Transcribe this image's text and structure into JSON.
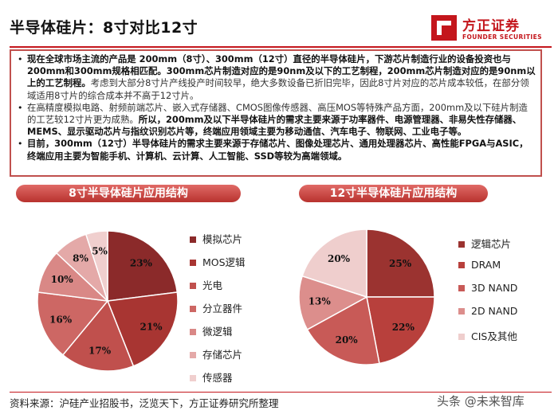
{
  "header": {
    "title": "半导体硅片：8寸对比12寸",
    "logo_cn": "方正证券",
    "logo_en": "FOUNDER SECURITIES"
  },
  "bullets": [
    {
      "parts": [
        {
          "text": "现在全球市场主流的产品是 200mm（8寸）、300mm（12寸）直径的半导体硅片，下游芯片制造行业的设备投资也与200mm和300mm规格相匹配。300mm芯片制造对应的是90nm及以下的工艺制程，200mm芯片制造对应的是90nm以上的工艺制程。",
          "style": "bold"
        },
        {
          "text": "考虑到大部分8寸片产线投产时间较早，绝大多数设备已折旧完毕，因此8寸片对应的芯片成本较低，在部分领域适用8寸片的综合成本并不高于12寸片。",
          "style": "normal"
        }
      ]
    },
    {
      "parts": [
        {
          "text": "在高精度模拟电路、射频前端芯片、嵌入式存储器、CMOS图像传感器、高压MOS等特殊产品方面，200mm及以下硅片制造的工艺较12寸片更为成熟。",
          "style": "normal"
        },
        {
          "text": "所以，200mm及以下半导体硅片的需求主要来源于功率器件、电源管理器、非易失性存储器、MEMS、显示驱动芯片与指纹识别芯片等，终端应用领域主要为移动通信、汽车电子、物联网、工业电子等。",
          "style": "bold"
        }
      ]
    },
    {
      "parts": [
        {
          "text": "目前，300mm（12寸）半导体硅片的需求主要来源于存储芯片、图像处理芯片、通用处理器芯片、高性能FPGA与ASIC，终端应用主要为智能手机、计算机、云计算、人工智能、SSD等较为高端领域。",
          "style": "bold"
        }
      ]
    }
  ],
  "chart_data": [
    {
      "type": "pie",
      "title": "8寸半导体硅片应用结构",
      "categories": [
        "模拟芯片",
        "MOS逻辑",
        "光电",
        "分立器件",
        "微逻辑",
        "存储芯片",
        "传感器"
      ],
      "values": [
        23,
        21,
        17,
        16,
        10,
        8,
        5
      ],
      "labels": [
        "23%",
        "21%",
        "17%",
        "16%",
        "10%",
        "8%",
        "5%"
      ],
      "colors": [
        "#8b2a2a",
        "#a83532",
        "#c0504d",
        "#cd6764",
        "#d98886",
        "#e4a9a8",
        "#f0cfce"
      ],
      "legend_position": "right"
    },
    {
      "type": "pie",
      "title": "12寸半导体硅片应用结构",
      "categories": [
        "逻辑芯片",
        "DRAM",
        "3D NAND",
        "2D NAND",
        "CIS及其他"
      ],
      "values": [
        25,
        22,
        20,
        13,
        20
      ],
      "labels": [
        "25%",
        "22%",
        "20%",
        "13%",
        "20%"
      ],
      "colors": [
        "#9b3330",
        "#b8403c",
        "#c85a57",
        "#dc8e8c",
        "#efcecd"
      ],
      "legend_position": "right"
    }
  ],
  "footer": {
    "source": "资料来源：沪硅产业招股书，泛览天下，方正证券研究所整理",
    "watermark": "头条 @未来智库"
  }
}
